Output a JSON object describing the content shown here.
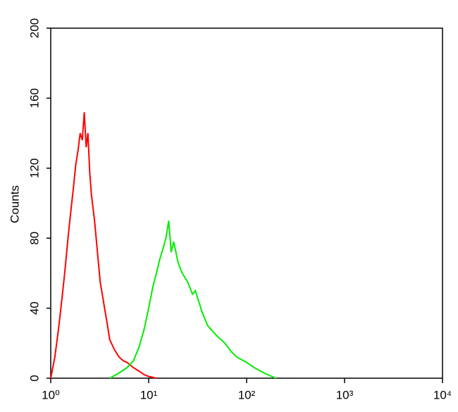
{
  "chart_data": {
    "type": "line",
    "ylabel": "Counts",
    "xscale": "log",
    "xlim": [
      1,
      10000
    ],
    "xticks": [
      {
        "value": 1,
        "label": "10⁰"
      },
      {
        "value": 10,
        "label": "10¹"
      },
      {
        "value": 100,
        "label": "10²"
      },
      {
        "value": 1000,
        "label": "10³"
      },
      {
        "value": 10000,
        "label": "10⁴"
      }
    ],
    "ylim": [
      0,
      200
    ],
    "yticks": [
      0,
      40,
      80,
      120,
      160,
      200
    ],
    "series": [
      {
        "color": "#ff0000",
        "x": [
          1,
          1.1,
          1.2,
          1.3,
          1.4,
          1.5,
          1.6,
          1.7,
          1.8,
          1.9,
          2.0,
          2.1,
          2.2,
          2.3,
          2.4,
          2.5,
          2.6,
          2.8,
          3.0,
          3.2,
          3.5,
          3.8,
          4.0,
          4.5,
          5.0,
          5.5,
          6.0,
          7.0,
          8.0,
          9.0,
          10,
          12
        ],
        "values": [
          0,
          12,
          28,
          45,
          62,
          80,
          95,
          108,
          122,
          130,
          140,
          136,
          152,
          132,
          140,
          118,
          105,
          90,
          72,
          55,
          42,
          30,
          22,
          16,
          12,
          10,
          9,
          6,
          4,
          2,
          1,
          0
        ]
      },
      {
        "color": "#00ee00",
        "x": [
          4,
          5,
          6,
          7,
          8,
          9,
          10,
          11,
          12,
          13,
          14,
          15,
          16,
          17,
          18,
          20,
          22,
          25,
          28,
          30,
          35,
          40,
          50,
          60,
          70,
          80,
          100,
          120,
          150,
          180,
          200
        ],
        "values": [
          0,
          3,
          6,
          10,
          18,
          28,
          40,
          52,
          60,
          68,
          74,
          80,
          90,
          72,
          78,
          66,
          60,
          55,
          48,
          50,
          38,
          30,
          24,
          20,
          15,
          12,
          9,
          6,
          3,
          1,
          0
        ]
      }
    ]
  }
}
